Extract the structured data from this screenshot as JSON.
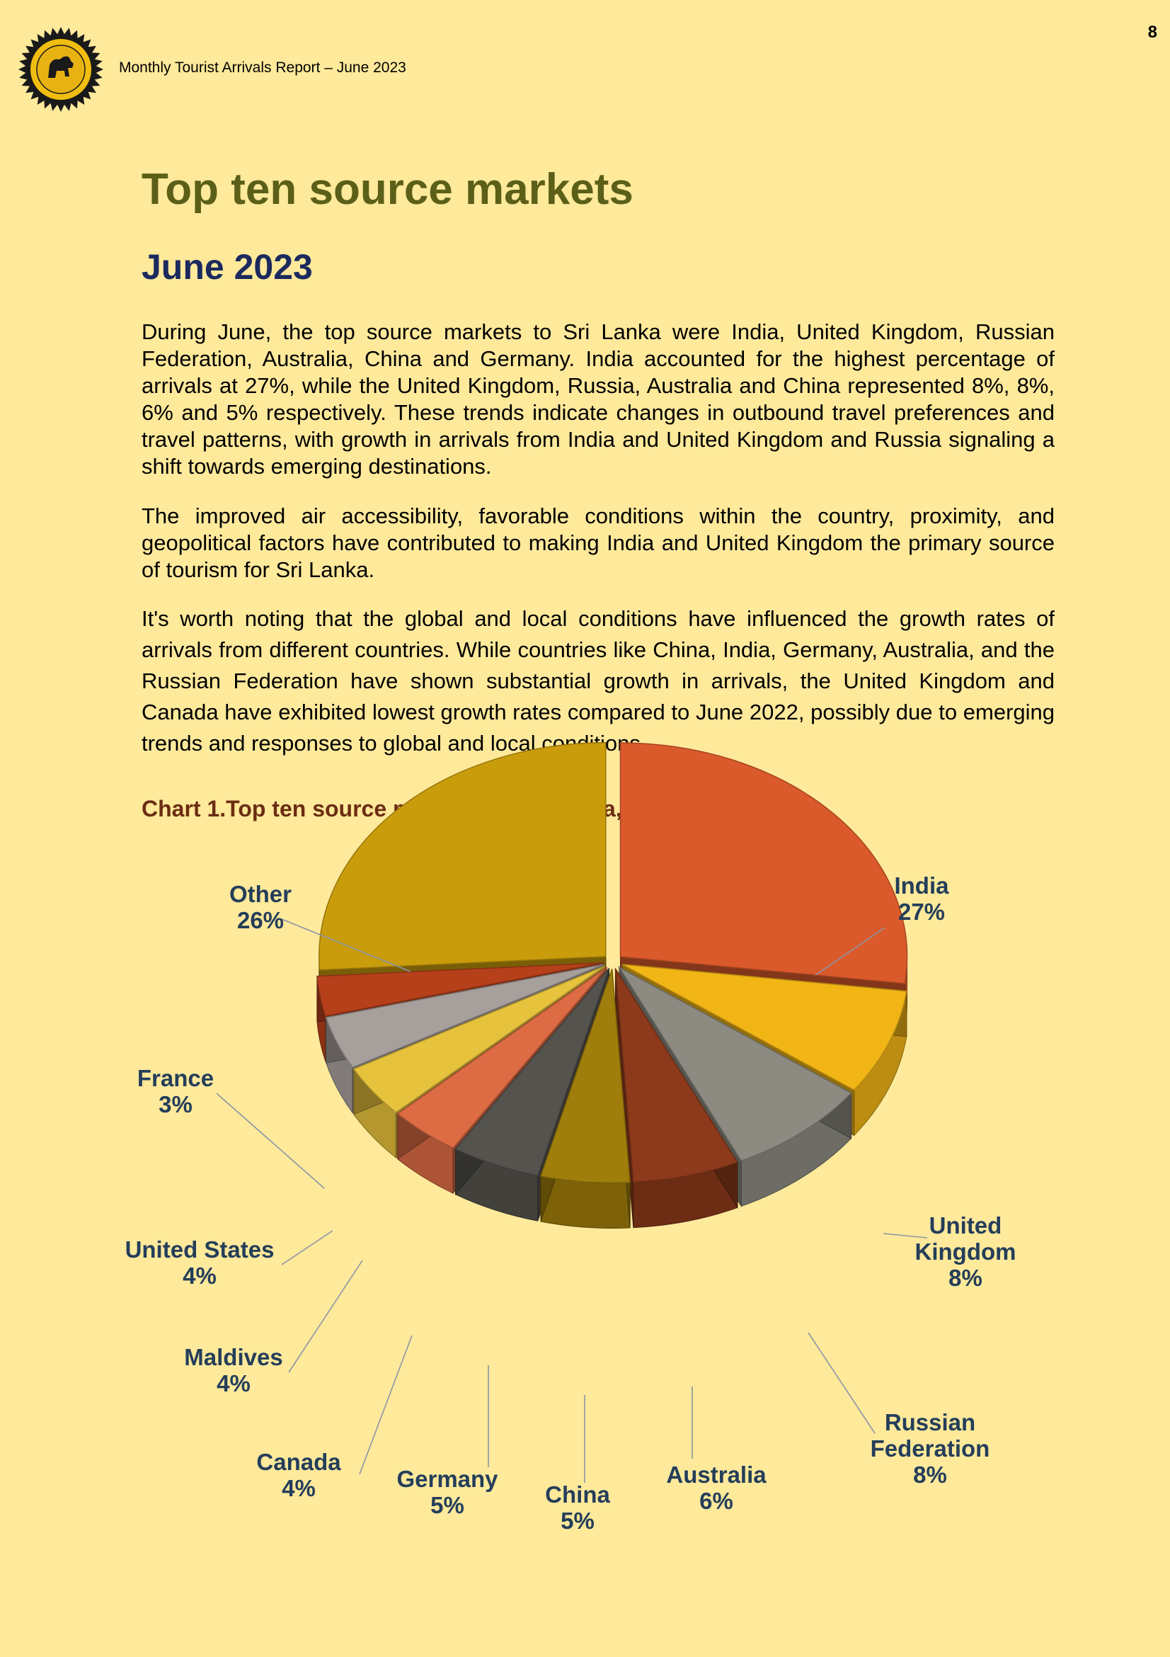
{
  "header": {
    "page_number": "8",
    "report_title": "Monthly Tourist Arrivals Report –  June 2023",
    "logo_icon": "sri-lanka-tourism-emblem"
  },
  "main": {
    "title": "Top ten source markets",
    "subtitle": "June  2023",
    "paragraphs": [
      "During June, the top source markets to Sri Lanka were India, United Kingdom, Russian Federation, Australia, China and Germany. India accounted for the highest percentage of arrivals at 27%, while the United Kingdom, Russia, Australia and China represented 8%, 8%, 6% and 5% respectively. These trends indicate changes in outbound travel preferences and travel patterns, with growth in arrivals from India and United Kingdom and Russia signaling a shift towards emerging destinations.",
      "The improved air accessibility, favorable conditions within the country, proximity, and geopolitical factors have contributed to making India and United Kingdom the primary source of tourism for Sri Lanka.",
      "It's worth noting that the global and local conditions have influenced the growth rates of arrivals from different countries. While countries like China, India, Germany, Australia, and the Russian Federation have shown substantial growth in arrivals, the United Kingdom and Canada have exhibited lowest growth rates compared to June 2022, possibly due to emerging trends and responses to global and local conditions."
    ],
    "chart_caption": "Chart 1.Top ten source markets to Sri Lanka, June 2023"
  },
  "chart_data": {
    "type": "pie",
    "title": "Chart 1.Top ten source markets to Sri Lanka, June 2023",
    "categories": [
      "India",
      "United Kingdom",
      "Russian Federation",
      "Australia",
      "China",
      "Germany",
      "Canada",
      "Maldives",
      "United States",
      "France",
      "Other"
    ],
    "values": [
      27,
      8,
      8,
      6,
      5,
      5,
      4,
      4,
      4,
      3,
      26
    ],
    "percent_labels": [
      "27%",
      "8%",
      "8%",
      "6%",
      "5%",
      "5%",
      "4%",
      "4%",
      "4%",
      "3%",
      "26%"
    ],
    "colors": [
      "#db5a2b",
      "#f1b516",
      "#8c8a81",
      "#8c3a1b",
      "#a07e0c",
      "#55534d",
      "#dd6c44",
      "#e7c23c",
      "#a69f9b",
      "#b5401a",
      "#c99c0c"
    ],
    "style": "3d-exploded",
    "legend": "none",
    "labels_position": "outside-with-leader-lines"
  }
}
